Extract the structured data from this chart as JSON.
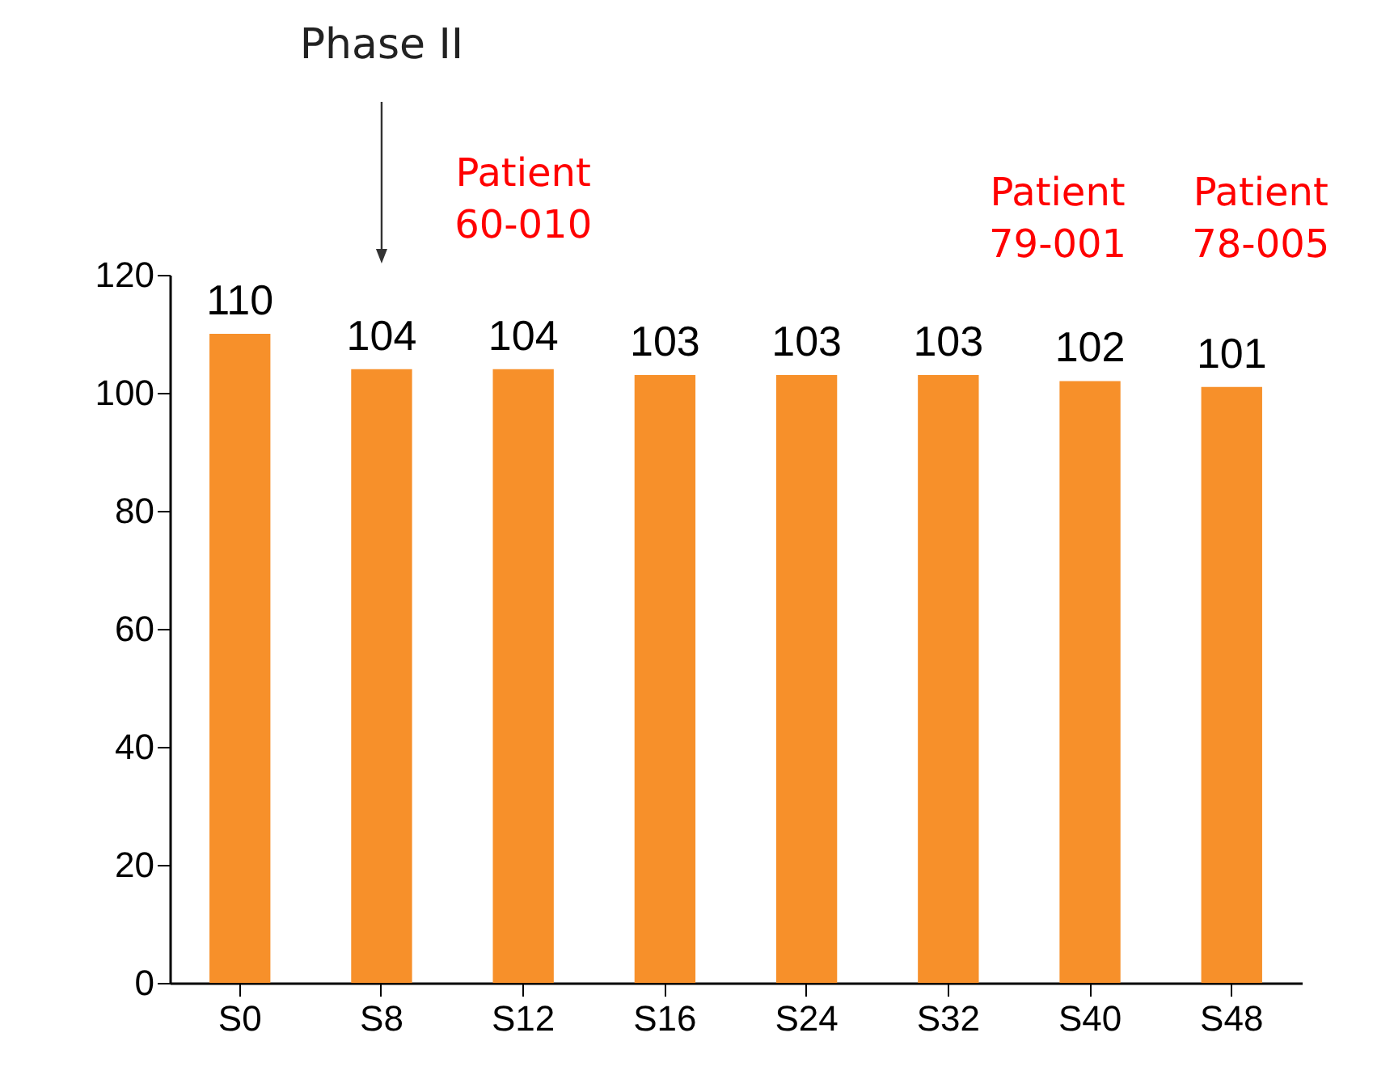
{
  "chart_data": {
    "type": "bar",
    "categories": [
      "S0",
      "S8",
      "S12",
      "S16",
      "S24",
      "S32",
      "S40",
      "S48"
    ],
    "values": [
      110,
      104,
      104,
      103,
      103,
      103,
      102,
      101
    ],
    "color": "#f7902a",
    "ylim": [
      0,
      120
    ],
    "yticks": [
      0,
      20,
      40,
      60,
      80,
      100,
      120
    ],
    "grid": false,
    "data_labels": true,
    "annotations": [
      "Phase II",
      "Patient\n60-010",
      "Patient\n79-001",
      "Patient\n78-005"
    ]
  }
}
